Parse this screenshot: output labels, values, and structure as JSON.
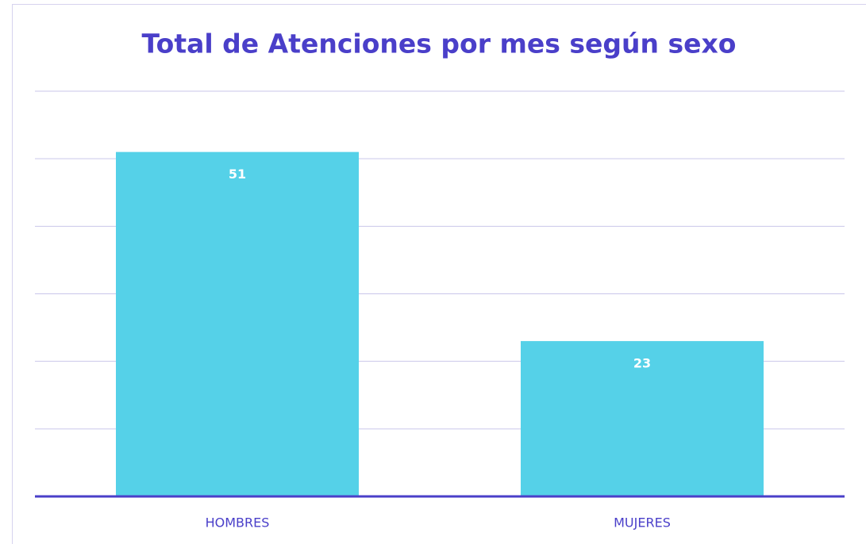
{
  "chart_data": {
    "type": "bar",
    "title": "Total de Atenciones por mes según sexo",
    "categories": [
      "HOMBRES",
      "MUJERES"
    ],
    "values": [
      51,
      23
    ],
    "color": "#55d1e8",
    "ylim": [
      0,
      60
    ],
    "yticks": [
      0,
      10,
      20,
      30,
      40,
      50,
      60
    ],
    "grid": true
  }
}
